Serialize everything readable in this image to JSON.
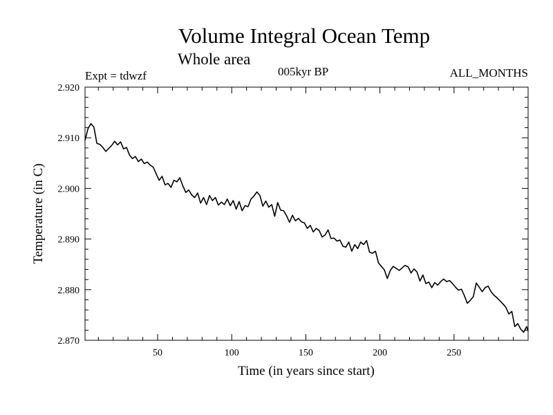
{
  "header": {
    "title": "Volume Integral Ocean Temp",
    "subtitle": "Whole area",
    "expt_label": "Expt = tdwzf",
    "period_label": "005kyr BP",
    "months_label": "ALL_MONTHS"
  },
  "chart_data": {
    "type": "line",
    "title": "Volume Integral Ocean Temp",
    "subtitle": "Whole area",
    "xlabel": "Time (in years since start)",
    "ylabel": "Temperature (in C)",
    "xlim": [
      1,
      300
    ],
    "ylim": [
      2.87,
      2.92
    ],
    "x_ticks": [
      50,
      100,
      150,
      200,
      250
    ],
    "x_tick_labels": [
      "50",
      "100",
      "150",
      "200",
      "250"
    ],
    "y_ticks": [
      2.87,
      2.88,
      2.89,
      2.9,
      2.91,
      2.92
    ],
    "y_tick_labels": [
      "2.870",
      "2.880",
      "2.890",
      "2.900",
      "2.910",
      "2.920"
    ],
    "grid": false,
    "series": [
      {
        "color": "#000000",
        "x": [
          1,
          3,
          5,
          7,
          9,
          11,
          13,
          15,
          17,
          19,
          21,
          23,
          25,
          27,
          29,
          31,
          33,
          35,
          37,
          39,
          41,
          43,
          45,
          47,
          49,
          51,
          53,
          55,
          57,
          59,
          61,
          63,
          65,
          67,
          69,
          71,
          73,
          75,
          77,
          79,
          81,
          83,
          85,
          87,
          89,
          91,
          93,
          95,
          97,
          99,
          101,
          103,
          105,
          107,
          109,
          111,
          113,
          115,
          117,
          119,
          121,
          123,
          125,
          127,
          129,
          131,
          133,
          135,
          137,
          139,
          141,
          143,
          145,
          147,
          149,
          151,
          153,
          155,
          157,
          159,
          161,
          163,
          165,
          167,
          169,
          171,
          173,
          175,
          177,
          179,
          181,
          183,
          185,
          187,
          189,
          191,
          193,
          195,
          197,
          199,
          201,
          203,
          205,
          207,
          209,
          211,
          213,
          215,
          217,
          219,
          221,
          223,
          225,
          227,
          229,
          231,
          233,
          235,
          237,
          239,
          241,
          243,
          245,
          247,
          249,
          251,
          253,
          255,
          257,
          259,
          261,
          263,
          265,
          267,
          269,
          271,
          273,
          275,
          277,
          279,
          281,
          283,
          285,
          287,
          289,
          291,
          293,
          295,
          297,
          299,
          300
        ],
        "y": [
          2.9095,
          2.9118,
          2.9128,
          2.9121,
          2.9089,
          2.9087,
          2.9081,
          2.9073,
          2.9079,
          2.9085,
          2.9093,
          2.9086,
          2.9092,
          2.9078,
          2.9081,
          2.9066,
          2.9059,
          2.9063,
          2.9053,
          2.9058,
          2.9049,
          2.9052,
          2.9046,
          2.9042,
          2.9029,
          2.9016,
          2.9024,
          2.9007,
          2.901,
          2.9002,
          2.9016,
          2.9013,
          2.9021,
          2.9005,
          2.8992,
          2.8997,
          2.8987,
          2.8982,
          2.8991,
          2.8971,
          2.8982,
          2.8968,
          2.8986,
          2.8976,
          2.8982,
          2.8967,
          2.8973,
          2.8968,
          2.8979,
          2.8966,
          2.8976,
          2.8959,
          2.8974,
          2.8956,
          2.8966,
          2.8964,
          2.8979,
          2.8985,
          2.8993,
          2.8986,
          2.8965,
          2.8975,
          2.8963,
          2.8968,
          2.8945,
          2.8972,
          2.8957,
          2.8956,
          2.8946,
          2.8933,
          2.8947,
          2.8936,
          2.8941,
          2.8934,
          2.8932,
          2.8921,
          2.8927,
          2.8914,
          2.8921,
          2.8917,
          2.8904,
          2.8908,
          2.8918,
          2.8901,
          2.8902,
          2.8896,
          2.8898,
          2.8886,
          2.8884,
          2.8894,
          2.8876,
          2.8889,
          2.8881,
          2.8894,
          2.8889,
          2.8897,
          2.8874,
          2.8872,
          2.8876,
          2.8853,
          2.8846,
          2.8839,
          2.8822,
          2.8838,
          2.8846,
          2.8842,
          2.8838,
          2.8843,
          2.8848,
          2.8845,
          2.8833,
          2.8841,
          2.8835,
          2.8817,
          2.8829,
          2.8812,
          2.8815,
          2.8804,
          2.8814,
          2.8809,
          2.8816,
          2.8821,
          2.8816,
          2.8818,
          2.8812,
          2.8805,
          2.8799,
          2.8801,
          2.8788,
          2.8773,
          2.8779,
          2.8786,
          2.8813,
          2.8805,
          2.8796,
          2.8804,
          2.8807,
          2.8796,
          2.8789,
          2.8784,
          2.8778,
          2.8772,
          2.8765,
          2.8752,
          2.8757,
          2.8727,
          2.8733,
          2.8722,
          2.8716,
          2.8727,
          2.8718
        ]
      }
    ]
  }
}
